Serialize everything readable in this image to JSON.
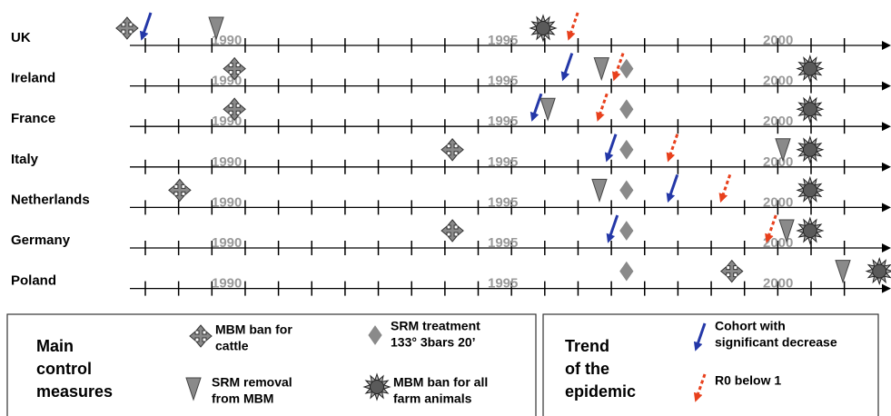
{
  "year_labels": [
    "1990",
    "1995",
    "2000"
  ],
  "rows": [
    {
      "label": "UK",
      "events": [
        {
          "type": "cattle_ban",
          "year": 1987.65
        },
        {
          "type": "cohort_decrease",
          "year": 1988.0
        },
        {
          "type": "srm_removal",
          "year": 1989.36
        },
        {
          "type": "all_animals_ban",
          "year": 1995.63
        },
        {
          "type": "r0_below_1",
          "year": 1996.19
        }
      ]
    },
    {
      "label": "Ireland",
      "events": [
        {
          "type": "cattle_ban",
          "year": 1989.71
        },
        {
          "type": "cohort_decrease",
          "year": 1996.08
        },
        {
          "type": "srm_removal",
          "year": 1996.75
        },
        {
          "type": "r0_below_1",
          "year": 1997.06
        },
        {
          "type": "srm_treatment",
          "year": 1997.23
        },
        {
          "type": "all_animals_ban",
          "year": 2000.75
        }
      ]
    },
    {
      "label": "France",
      "events": [
        {
          "type": "cattle_ban",
          "year": 1989.71
        },
        {
          "type": "cohort_decrease",
          "year": 1995.49
        },
        {
          "type": "srm_removal",
          "year": 1995.72
        },
        {
          "type": "r0_below_1",
          "year": 1996.75
        },
        {
          "type": "srm_treatment",
          "year": 1997.23
        },
        {
          "type": "all_animals_ban",
          "year": 2000.75
        }
      ]
    },
    {
      "label": "Italy",
      "events": [
        {
          "type": "cattle_ban",
          "year": 1993.89
        },
        {
          "type": "cohort_decrease",
          "year": 1996.92
        },
        {
          "type": "srm_treatment",
          "year": 1997.23
        },
        {
          "type": "r0_below_1",
          "year": 1998.1
        },
        {
          "type": "srm_removal",
          "year": 2000.23
        },
        {
          "type": "all_animals_ban",
          "year": 2000.75
        }
      ]
    },
    {
      "label": "Netherlands",
      "events": [
        {
          "type": "cattle_ban",
          "year": 1988.66
        },
        {
          "type": "srm_removal",
          "year": 1996.71
        },
        {
          "type": "srm_treatment",
          "year": 1997.23
        },
        {
          "type": "cohort_decrease",
          "year": 1998.1
        },
        {
          "type": "r0_below_1",
          "year": 1999.11
        },
        {
          "type": "all_animals_ban",
          "year": 2000.75
        }
      ]
    },
    {
      "label": "Germany",
      "events": [
        {
          "type": "cattle_ban",
          "year": 1993.89
        },
        {
          "type": "cohort_decrease",
          "year": 1996.95
        },
        {
          "type": "srm_treatment",
          "year": 1997.23
        },
        {
          "type": "r0_below_1",
          "year": 1999.99
        },
        {
          "type": "srm_removal",
          "year": 2000.3
        },
        {
          "type": "all_animals_ban",
          "year": 2000.75
        }
      ]
    },
    {
      "label": "Poland",
      "events": [
        {
          "type": "srm_treatment",
          "year": 1997.23
        },
        {
          "type": "cattle_ban",
          "year": 1999.25
        },
        {
          "type": "srm_removal",
          "year": 2001.38
        },
        {
          "type": "all_animals_ban",
          "year": 2002.08
        }
      ]
    }
  ],
  "legend": {
    "measures": {
      "title": [
        "Main",
        "control",
        "measures"
      ],
      "items": [
        {
          "type": "cattle_ban",
          "text": [
            "MBM ban for",
            "cattle"
          ]
        },
        {
          "type": "srm_removal",
          "text": [
            "SRM removal",
            "from MBM"
          ]
        },
        {
          "type": "srm_treatment",
          "text": [
            "SRM treatment",
            "133° 3bars 20’"
          ]
        },
        {
          "type": "all_animals_ban",
          "text": [
            "MBM ban for all",
            "farm animals"
          ]
        }
      ]
    },
    "trend": {
      "title": [
        "Trend",
        "of the",
        "epidemic"
      ],
      "items": [
        {
          "type": "cohort_decrease",
          "text": [
            "Cohort with",
            "significant decrease"
          ]
        },
        {
          "type": "r0_below_1",
          "text": [
            "R0 below 1"
          ]
        }
      ]
    }
  }
}
